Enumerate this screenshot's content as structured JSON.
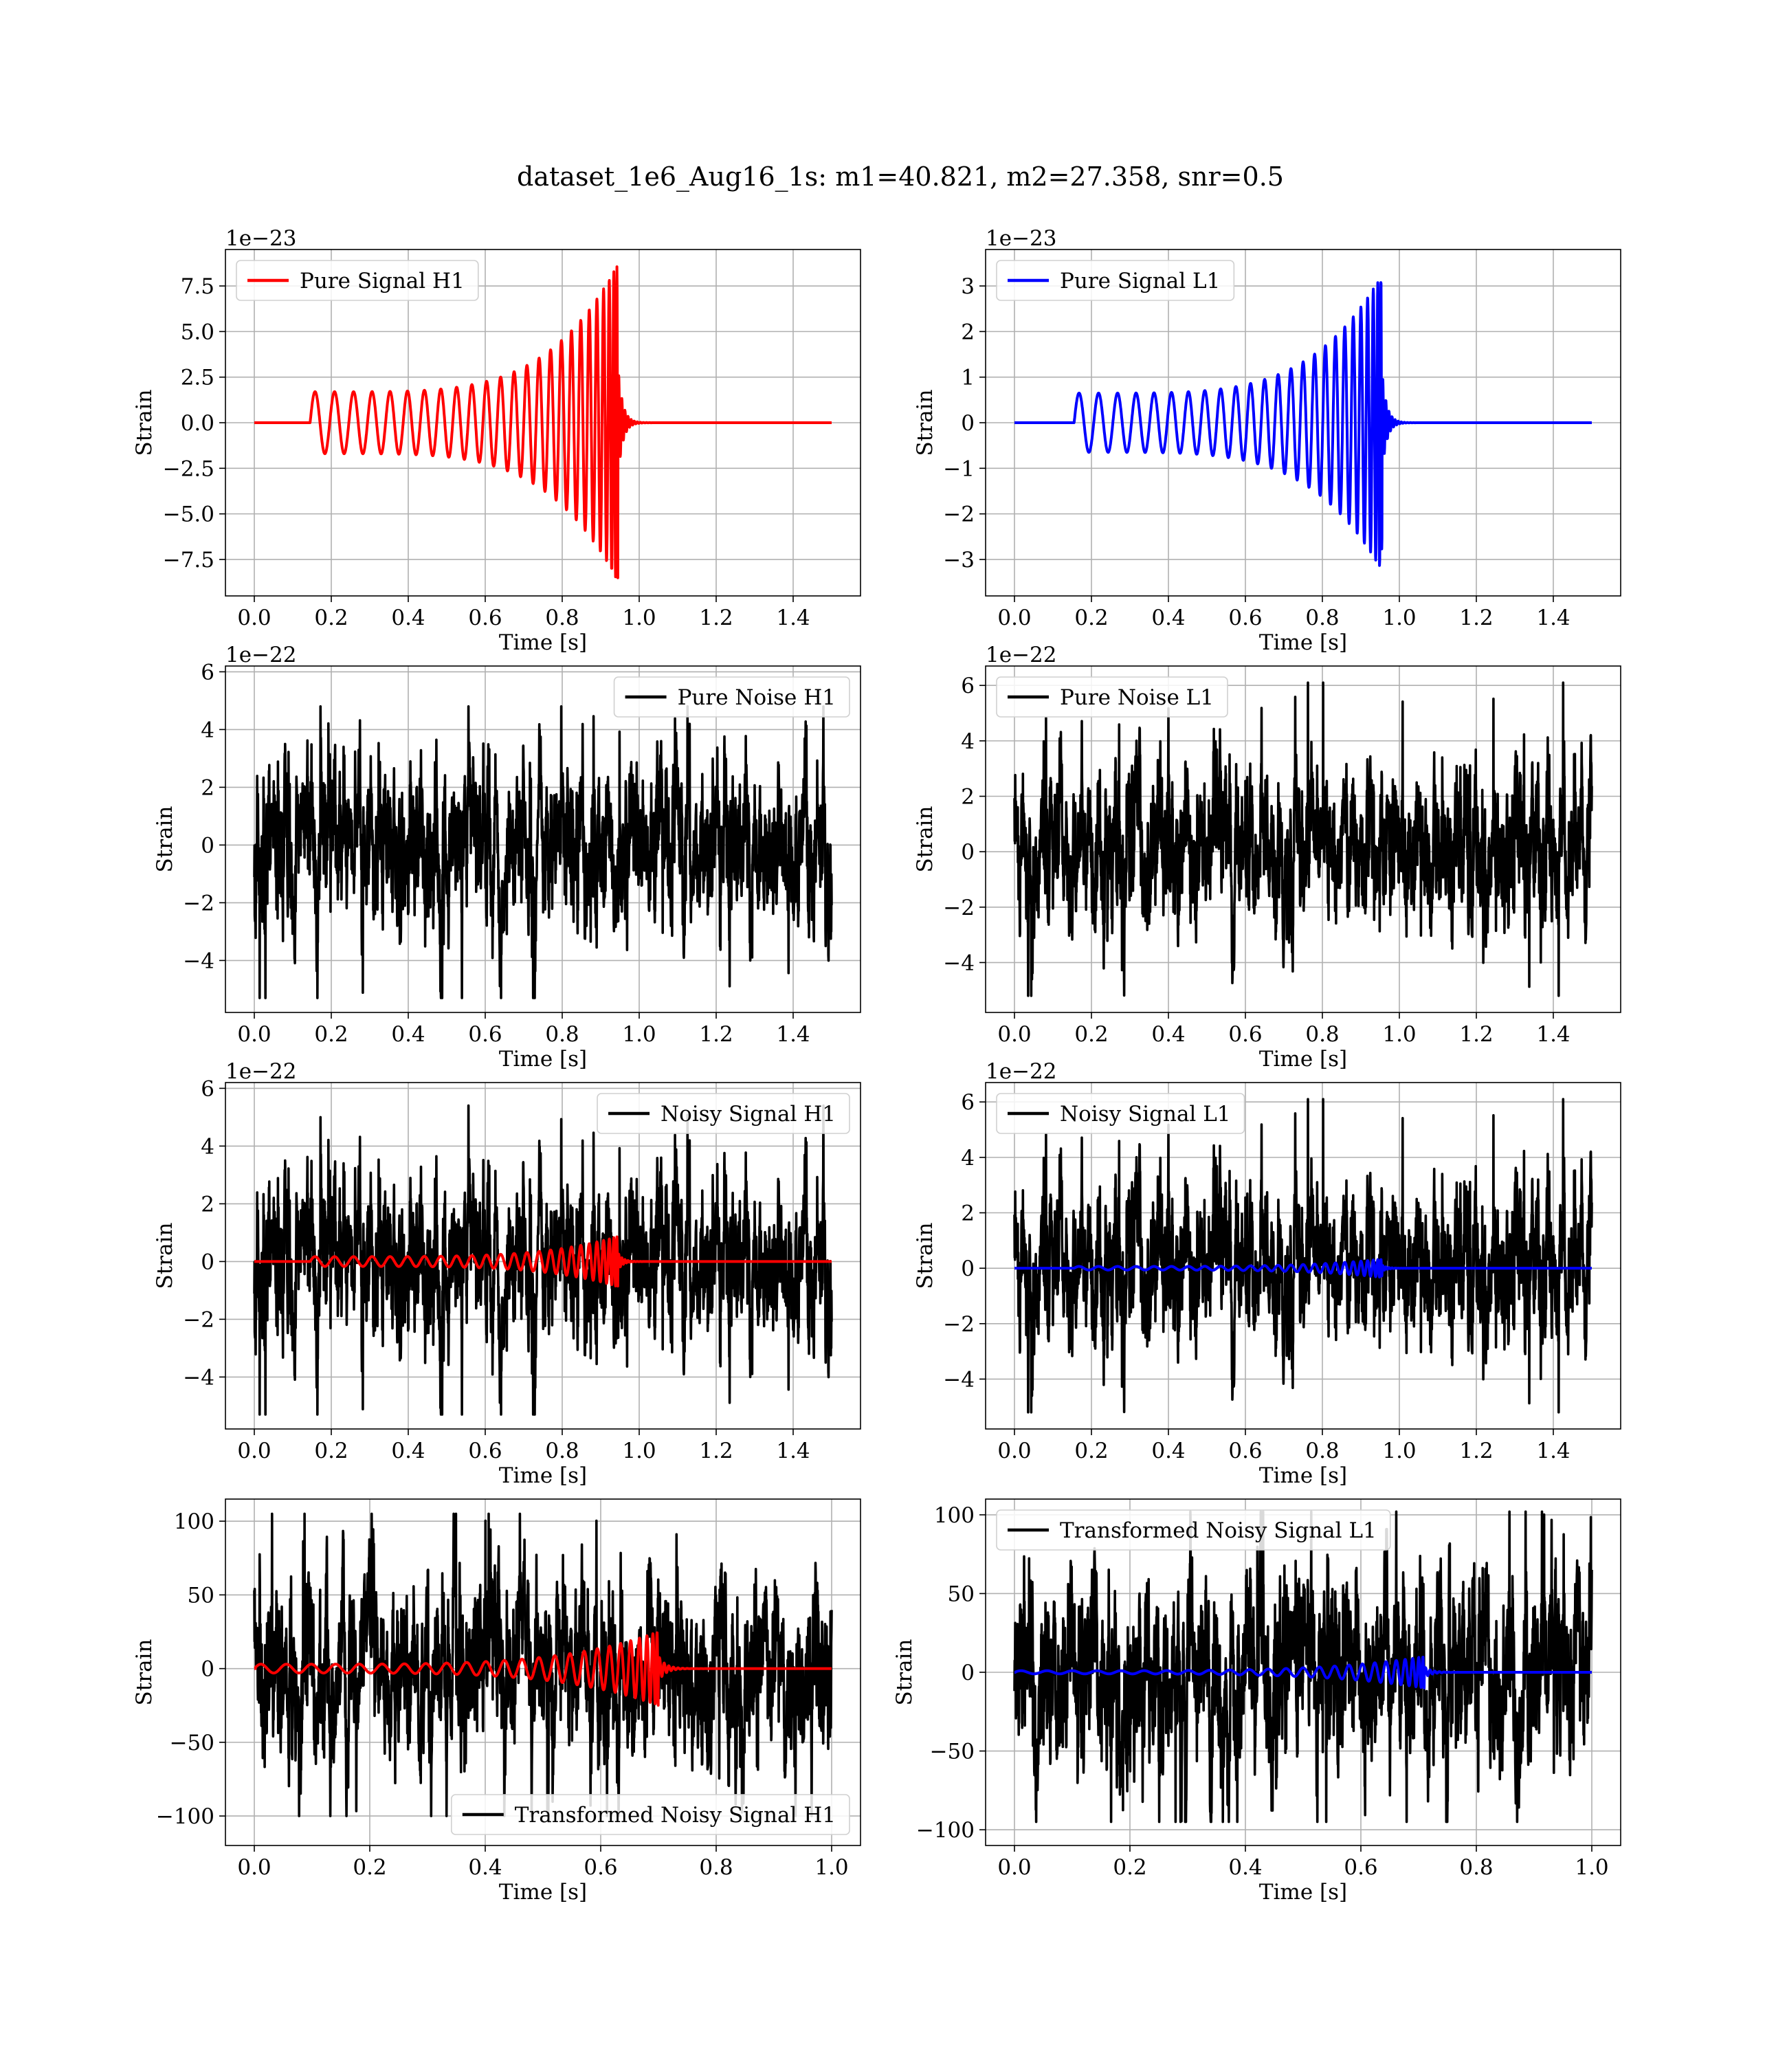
{
  "figure": {
    "suptitle": "dataset_1e6_Aug16_1s: m1=40.821, m2=27.358, snr=0.5",
    "colors": {
      "h1_signal": "#ff0000",
      "l1_signal": "#0000ff",
      "noise": "#000000",
      "grid": "#b0b0b0"
    }
  },
  "chart_data": [
    {
      "type": "line",
      "id": "pure-signal-h1",
      "series": [
        {
          "name": "Pure Signal H1",
          "color": "#ff0000",
          "kind": "chirp",
          "t_start": 0.145,
          "t_merge": 0.945,
          "t_end": 1.5,
          "amp_start": 1.7,
          "amp_peak": 8.7,
          "cycles": 25
        }
      ],
      "legend": "upper-left",
      "xlabel": "Time [s]",
      "ylabel": "Strain",
      "offset_text": "1e−23",
      "xlim": [
        -0.075,
        1.575
      ],
      "ylim": [
        -9.5,
        9.5
      ],
      "xticks": [
        0.0,
        0.2,
        0.4,
        0.6,
        0.8,
        1.0,
        1.2,
        1.4
      ],
      "xtick_labels": [
        "0.0",
        "0.2",
        "0.4",
        "0.6",
        "0.8",
        "1.0",
        "1.2",
        "1.4"
      ],
      "yticks": [
        -7.5,
        -5.0,
        -2.5,
        0.0,
        2.5,
        5.0,
        7.5
      ],
      "ytick_labels": [
        "−7.5",
        "−5.0",
        "−2.5",
        "0.0",
        "2.5",
        "5.0",
        "7.5"
      ],
      "grid": true
    },
    {
      "type": "line",
      "id": "pure-signal-l1",
      "series": [
        {
          "name": "Pure Signal L1",
          "color": "#0000ff",
          "kind": "chirp",
          "t_start": 0.155,
          "t_merge": 0.955,
          "t_end": 1.5,
          "amp_start": 0.65,
          "amp_peak": 3.25,
          "cycles": 25
        }
      ],
      "legend": "upper-left",
      "xlabel": "Time [s]",
      "ylabel": "Strain",
      "offset_text": "1e−23",
      "xlim": [
        -0.075,
        1.575
      ],
      "ylim": [
        -3.8,
        3.8
      ],
      "xticks": [
        0.0,
        0.2,
        0.4,
        0.6,
        0.8,
        1.0,
        1.2,
        1.4
      ],
      "xtick_labels": [
        "0.0",
        "0.2",
        "0.4",
        "0.6",
        "0.8",
        "1.0",
        "1.2",
        "1.4"
      ],
      "yticks": [
        -3,
        -2,
        -1,
        0,
        1,
        2,
        3
      ],
      "ytick_labels": [
        "−3",
        "−2",
        "−1",
        "0",
        "1",
        "2",
        "3"
      ],
      "grid": true
    },
    {
      "type": "line",
      "id": "pure-noise-h1",
      "series": [
        {
          "name": "Pure Noise H1",
          "color": "#000000",
          "kind": "noise",
          "t_start": 0.0,
          "t_end": 1.5,
          "spread": 1.3,
          "max": 4.8,
          "min": -5.3,
          "seed": 11
        }
      ],
      "legend": "upper-right",
      "xlabel": "Time [s]",
      "ylabel": "Strain",
      "offset_text": "1e−22",
      "xlim": [
        -0.075,
        1.575
      ],
      "ylim": [
        -5.8,
        6.2
      ],
      "xticks": [
        0.0,
        0.2,
        0.4,
        0.6,
        0.8,
        1.0,
        1.2,
        1.4
      ],
      "xtick_labels": [
        "0.0",
        "0.2",
        "0.4",
        "0.6",
        "0.8",
        "1.0",
        "1.2",
        "1.4"
      ],
      "yticks": [
        -4,
        -2,
        0,
        2,
        4,
        6
      ],
      "ytick_labels": [
        "−4",
        "−2",
        "0",
        "2",
        "4",
        "6"
      ],
      "grid": true
    },
    {
      "type": "line",
      "id": "pure-noise-l1",
      "series": [
        {
          "name": "Pure Noise L1",
          "color": "#000000",
          "kind": "noise",
          "t_start": 0.0,
          "t_end": 1.5,
          "spread": 1.3,
          "max": 6.1,
          "min": -5.2,
          "seed": 23
        }
      ],
      "legend": "upper-left",
      "xlabel": "Time [s]",
      "ylabel": "Strain",
      "offset_text": "1e−22",
      "xlim": [
        -0.075,
        1.575
      ],
      "ylim": [
        -5.8,
        6.7
      ],
      "xticks": [
        0.0,
        0.2,
        0.4,
        0.6,
        0.8,
        1.0,
        1.2,
        1.4
      ],
      "xtick_labels": [
        "0.0",
        "0.2",
        "0.4",
        "0.6",
        "0.8",
        "1.0",
        "1.2",
        "1.4"
      ],
      "yticks": [
        -4,
        -2,
        0,
        2,
        4,
        6
      ],
      "ytick_labels": [
        "−4",
        "−2",
        "0",
        "2",
        "4",
        "6"
      ],
      "grid": true
    },
    {
      "type": "line",
      "id": "noisy-signal-h1",
      "series": [
        {
          "name": "Noisy Signal H1",
          "color": "#000000",
          "kind": "noise",
          "t_start": 0.0,
          "t_end": 1.5,
          "spread": 1.3,
          "max": 5.4,
          "min": -5.3,
          "seed": 11
        },
        {
          "color": "#ff0000",
          "kind": "chirp",
          "t_start": 0.145,
          "t_merge": 0.945,
          "t_end": 1.5,
          "amp_start": 0.17,
          "amp_peak": 0.87,
          "cycles": 25
        }
      ],
      "legend": "upper-right",
      "xlabel": "Time [s]",
      "ylabel": "Strain",
      "offset_text": "1e−22",
      "xlim": [
        -0.075,
        1.575
      ],
      "ylim": [
        -5.8,
        6.2
      ],
      "xticks": [
        0.0,
        0.2,
        0.4,
        0.6,
        0.8,
        1.0,
        1.2,
        1.4
      ],
      "xtick_labels": [
        "0.0",
        "0.2",
        "0.4",
        "0.6",
        "0.8",
        "1.0",
        "1.2",
        "1.4"
      ],
      "yticks": [
        -4,
        -2,
        0,
        2,
        4,
        6
      ],
      "ytick_labels": [
        "−4",
        "−2",
        "0",
        "2",
        "4",
        "6"
      ],
      "grid": true
    },
    {
      "type": "line",
      "id": "noisy-signal-l1",
      "series": [
        {
          "name": "Noisy Signal L1",
          "color": "#000000",
          "kind": "noise",
          "t_start": 0.0,
          "t_end": 1.5,
          "spread": 1.3,
          "max": 6.1,
          "min": -5.2,
          "seed": 23
        },
        {
          "color": "#0000ff",
          "kind": "chirp",
          "t_start": 0.155,
          "t_merge": 0.955,
          "t_end": 1.5,
          "amp_start": 0.065,
          "amp_peak": 0.33,
          "cycles": 25
        }
      ],
      "legend": "upper-left",
      "xlabel": "Time [s]",
      "ylabel": "Strain",
      "offset_text": "1e−22",
      "xlim": [
        -0.075,
        1.575
      ],
      "ylim": [
        -5.8,
        6.7
      ],
      "xticks": [
        0.0,
        0.2,
        0.4,
        0.6,
        0.8,
        1.0,
        1.2,
        1.4
      ],
      "xtick_labels": [
        "0.0",
        "0.2",
        "0.4",
        "0.6",
        "0.8",
        "1.0",
        "1.2",
        "1.4"
      ],
      "yticks": [
        -4,
        -2,
        0,
        2,
        4,
        6
      ],
      "ytick_labels": [
        "−4",
        "−2",
        "0",
        "2",
        "4",
        "6"
      ],
      "grid": true
    },
    {
      "type": "line",
      "id": "transformed-noisy-signal-h1",
      "series": [
        {
          "name": "Transformed Noisy Signal H1",
          "color": "#000000",
          "kind": "noise",
          "t_start": 0.0,
          "t_end": 1.0,
          "spread": 28,
          "max": 105,
          "min": -100,
          "seed": 37
        },
        {
          "color": "#ff0000",
          "kind": "chirp",
          "t_start": 0.0,
          "t_merge": 0.7,
          "t_end": 1.0,
          "amp_start": 3,
          "amp_peak": 25,
          "cycles": 25
        }
      ],
      "legend": "lower-right",
      "xlabel": "Time [s]",
      "ylabel": "Strain",
      "offset_text": "",
      "xlim": [
        -0.05,
        1.05
      ],
      "ylim": [
        -120,
        115
      ],
      "xticks": [
        0.0,
        0.2,
        0.4,
        0.6,
        0.8,
        1.0
      ],
      "xtick_labels": [
        "0.0",
        "0.2",
        "0.4",
        "0.6",
        "0.8",
        "1.0"
      ],
      "yticks": [
        -100,
        -50,
        0,
        50,
        100
      ],
      "ytick_labels": [
        "−100",
        "−50",
        "0",
        "50",
        "100"
      ],
      "grid": true
    },
    {
      "type": "line",
      "id": "transformed-noisy-signal-l1",
      "series": [
        {
          "name": "Transformed Noisy Signal L1",
          "color": "#000000",
          "kind": "noise",
          "t_start": 0.0,
          "t_end": 1.0,
          "spread": 28,
          "max": 102,
          "min": -95,
          "seed": 41
        },
        {
          "color": "#0000ff",
          "kind": "chirp",
          "t_start": 0.0,
          "t_merge": 0.71,
          "t_end": 1.0,
          "amp_start": 1,
          "amp_peak": 10,
          "cycles": 25
        }
      ],
      "legend": "upper-left",
      "xlabel": "Time [s]",
      "ylabel": "Strain",
      "offset_text": "",
      "xlim": [
        -0.05,
        1.05
      ],
      "ylim": [
        -110,
        110
      ],
      "xticks": [
        0.0,
        0.2,
        0.4,
        0.6,
        0.8,
        1.0
      ],
      "xtick_labels": [
        "0.0",
        "0.2",
        "0.4",
        "0.6",
        "0.8",
        "1.0"
      ],
      "yticks": [
        -100,
        -50,
        0,
        50,
        100
      ],
      "ytick_labels": [
        "−100",
        "−50",
        "0",
        "50",
        "100"
      ],
      "grid": true
    }
  ]
}
